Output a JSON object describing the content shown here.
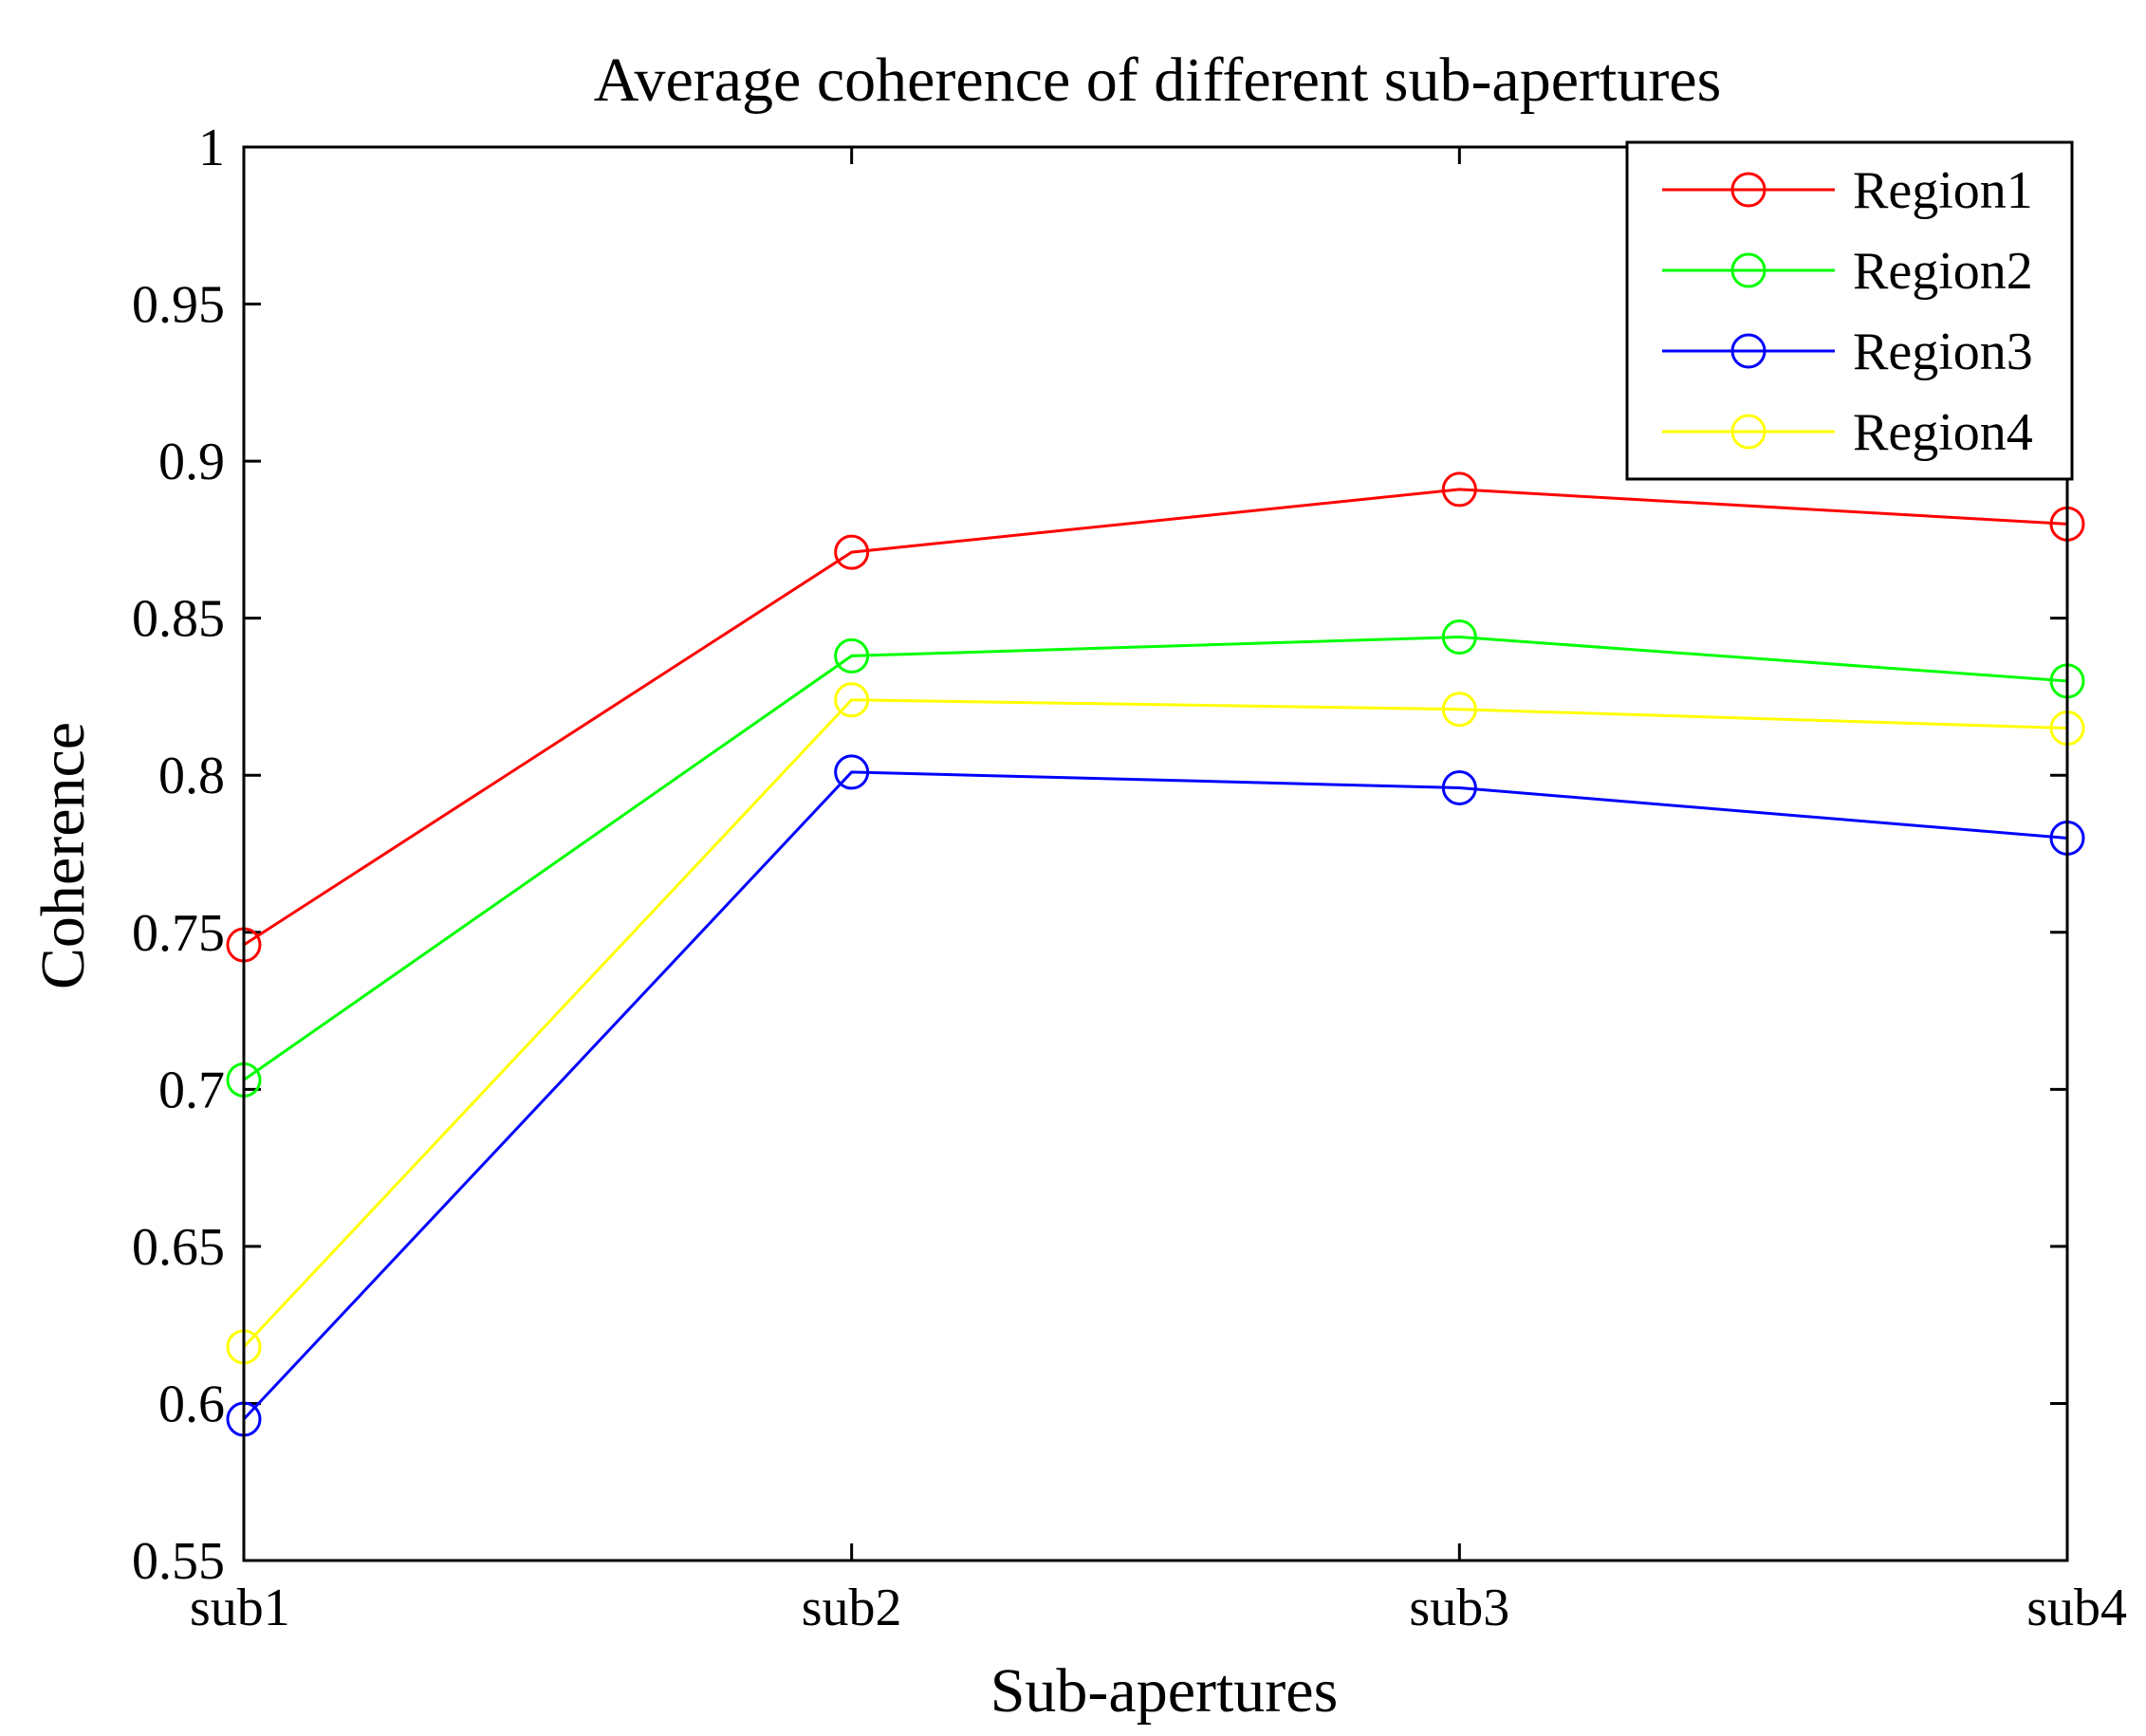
{
  "chart_data": {
    "type": "line",
    "title": "Average coherence of different sub-apertures",
    "xlabel": "Sub-apertures",
    "ylabel": "Coherence",
    "categories": [
      "sub1",
      "sub2",
      "sub3",
      "sub4"
    ],
    "ylim": [
      0.55,
      1.0
    ],
    "yticks": [
      0.55,
      0.6,
      0.65,
      0.7,
      0.75,
      0.8,
      0.85,
      0.9,
      0.95,
      1.0
    ],
    "ytick_labels": [
      "0.55",
      "0.6",
      "0.65",
      "0.7",
      "0.75",
      "0.8",
      "0.85",
      "0.9",
      "0.95",
      "1"
    ],
    "grid": false,
    "legend_position": "top-right",
    "marker": "circle",
    "series": [
      {
        "name": "Region1",
        "color": "#ff0000",
        "values": [
          0.746,
          0.871,
          0.891,
          0.88
        ]
      },
      {
        "name": "Region2",
        "color": "#00ff00",
        "values": [
          0.703,
          0.838,
          0.844,
          0.83
        ]
      },
      {
        "name": "Region3",
        "color": "#0000ff",
        "values": [
          0.595,
          0.801,
          0.796,
          0.78
        ]
      },
      {
        "name": "Region4",
        "color": "#ffff00",
        "values": [
          0.618,
          0.824,
          0.821,
          0.815
        ]
      }
    ]
  }
}
